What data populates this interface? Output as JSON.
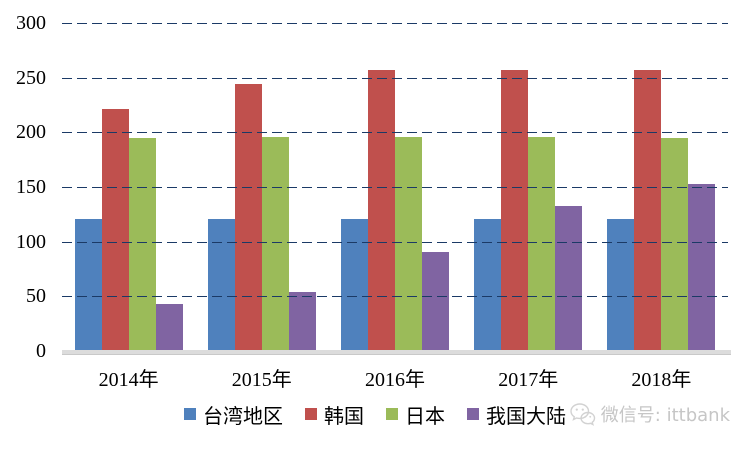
{
  "watermark": {
    "label": "微信号: ittbank",
    "icon": "wechat-icon"
  },
  "chart_data": {
    "type": "bar",
    "title": "",
    "xlabel": "",
    "ylabel": "",
    "categories": [
      "2014年",
      "2015年",
      "2016年",
      "2017年",
      "2018年"
    ],
    "series": [
      {
        "name": "台湾地区",
        "color": "#4F81BD",
        "values": [
          121,
          121,
          121,
          121,
          121
        ]
      },
      {
        "name": "韩国",
        "color": "#C0504D",
        "values": [
          221,
          244,
          257,
          257,
          257
        ]
      },
      {
        "name": "日本",
        "color": "#9BBB59",
        "values": [
          195,
          196,
          196,
          196,
          195
        ]
      },
      {
        "name": "我国大陆",
        "color": "#8064A2",
        "values": [
          43,
          54,
          91,
          133,
          153
        ]
      }
    ],
    "ylim": [
      0,
      300
    ],
    "yticks": [
      0,
      50,
      100,
      150,
      200,
      250,
      300
    ],
    "grid": "horizontal-dashed",
    "gridline_color": "#1B3A66",
    "legend_position": "bottom"
  }
}
